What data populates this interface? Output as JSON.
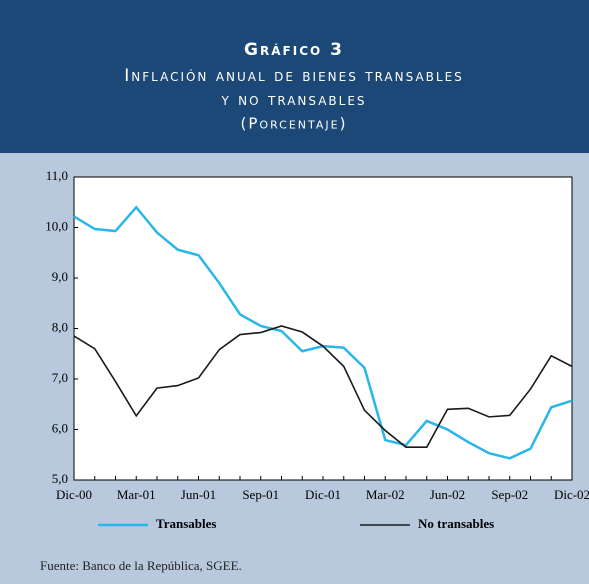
{
  "header": {
    "label": "Gráfico 3",
    "title_lines": [
      "Inflación anual de bienes transables",
      "y no transables"
    ],
    "subtitle": "(Porcentaje)"
  },
  "chart_data": {
    "type": "line",
    "categories": [
      "Dic-00",
      null,
      null,
      "Mar-01",
      null,
      null,
      "Jun-01",
      null,
      null,
      "Sep-01",
      null,
      null,
      "Dic-01",
      null,
      null,
      "Mar-02",
      null,
      null,
      "Jun-02",
      null,
      null,
      "Sep-02",
      null,
      null,
      "Dic-02"
    ],
    "series": [
      {
        "name": "Transables",
        "color": "#2ab6e8",
        "values": [
          10.22,
          9.97,
          9.93,
          10.4,
          9.9,
          9.56,
          9.45,
          8.9,
          8.28,
          8.05,
          7.95,
          7.55,
          7.65,
          7.62,
          7.22,
          5.79,
          5.69,
          6.17,
          6.0,
          5.75,
          5.53,
          5.43,
          5.62,
          6.44,
          6.57
        ]
      },
      {
        "name": "No transables",
        "color": "#1a1a1a",
        "values": [
          7.85,
          7.6,
          6.95,
          6.27,
          6.82,
          6.87,
          7.02,
          7.58,
          7.88,
          7.92,
          8.05,
          7.93,
          7.65,
          7.25,
          6.38,
          5.98,
          5.65,
          5.65,
          6.4,
          6.42,
          6.25,
          6.28,
          6.8,
          7.46,
          7.25
        ]
      }
    ],
    "ylim": [
      5,
      11
    ],
    "yticks": [
      {
        "value": 5,
        "label": "5,0"
      },
      {
        "value": 6,
        "label": "6,0"
      },
      {
        "value": 7,
        "label": "7,0"
      },
      {
        "value": 8,
        "label": "8,0"
      },
      {
        "value": 9,
        "label": "9,0"
      },
      {
        "value": 10,
        "label": "10,0"
      },
      {
        "value": 11,
        "label": "11,0"
      }
    ],
    "grid": false
  },
  "source": "Fuente: Banco de la República, SGEE."
}
